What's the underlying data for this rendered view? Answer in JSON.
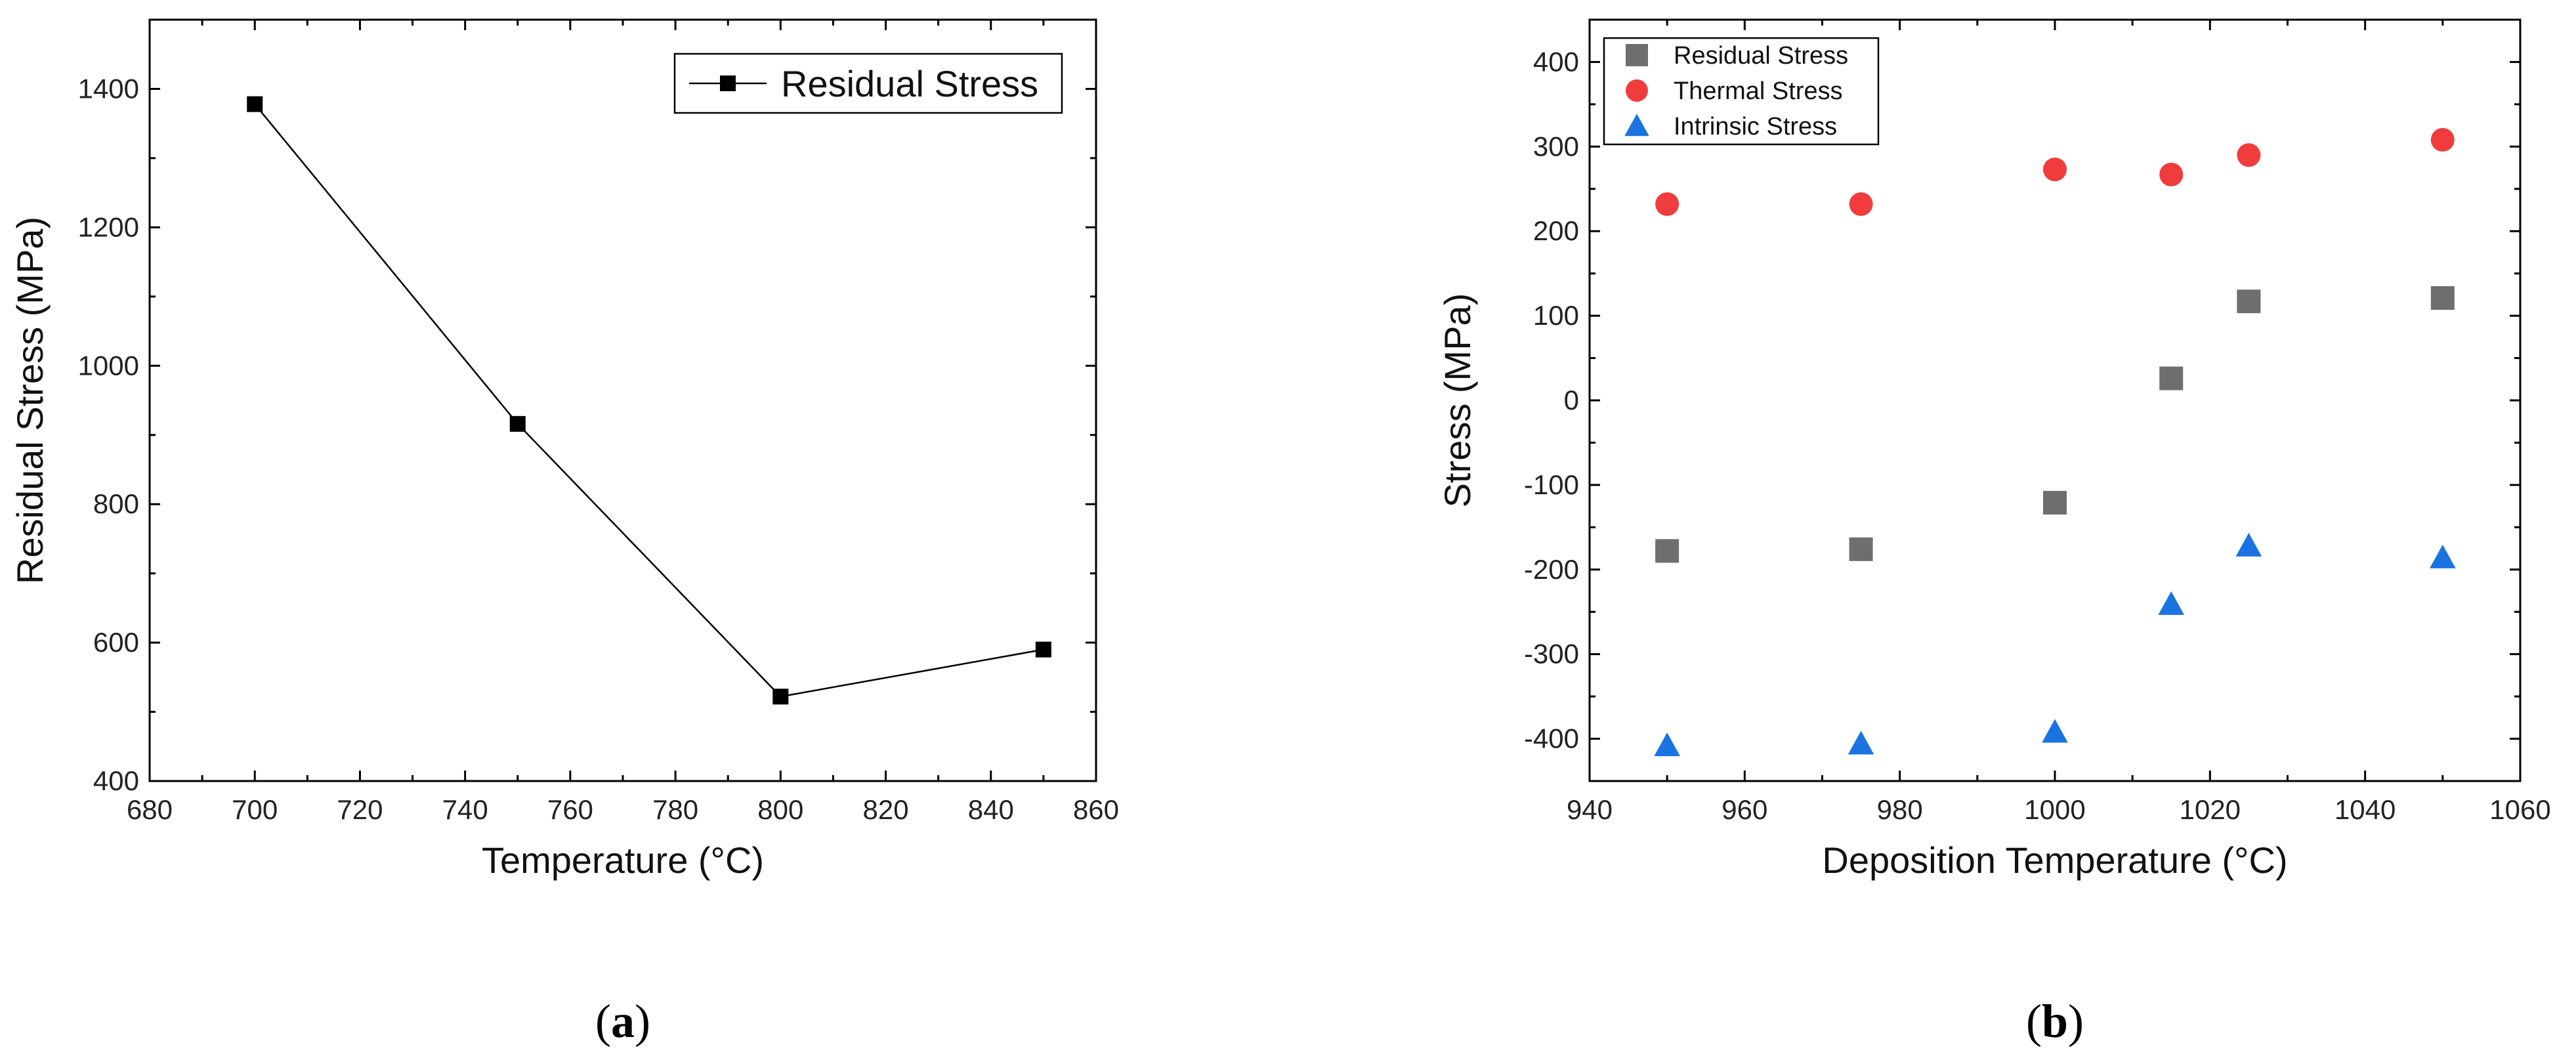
{
  "chart_data": [
    {
      "type": "line",
      "panel_label": "(a)",
      "panel_label_parts": {
        "open": "(",
        "letter": "a",
        "close": ")"
      },
      "title": "",
      "xlabel": "Temperature (°C)",
      "ylabel": "Residual Stress (MPa)",
      "xlim": [
        680,
        860
      ],
      "ylim": [
        400,
        1500
      ],
      "xticks": [
        680,
        700,
        720,
        740,
        760,
        780,
        800,
        820,
        840,
        860
      ],
      "yticks": [
        400,
        600,
        800,
        1000,
        1200,
        1400
      ],
      "legend_position": "top-right",
      "series": [
        {
          "name": "Residual Stress",
          "color": "#000000",
          "marker": "square",
          "x": [
            700,
            750,
            800,
            850
          ],
          "values": [
            1378,
            916,
            522,
            590
          ]
        }
      ]
    },
    {
      "type": "scatter",
      "panel_label": "(b)",
      "panel_label_parts": {
        "open": "(",
        "letter": "b",
        "close": ")"
      },
      "title": "",
      "xlabel": "Deposition Temperature (°C)",
      "ylabel": "Stress (MPa)",
      "xlim": [
        940,
        1060
      ],
      "ylim": [
        -450,
        450
      ],
      "xticks": [
        940,
        960,
        980,
        1000,
        1020,
        1040,
        1060
      ],
      "yticks": [
        -400,
        -300,
        -200,
        -100,
        0,
        100,
        200,
        300,
        400
      ],
      "legend_position": "top-left",
      "series": [
        {
          "name": "Residual Stress",
          "color": "#6e6e6e",
          "marker": "square",
          "x": [
            950,
            975,
            1000,
            1015,
            1025,
            1050
          ],
          "values": [
            -178,
            -176,
            -121,
            26,
            117,
            121
          ]
        },
        {
          "name": "Thermal Stress",
          "color": "#f03c3c",
          "marker": "circle",
          "x": [
            950,
            975,
            1000,
            1015,
            1025,
            1050
          ],
          "values": [
            232,
            232,
            273,
            267,
            290,
            308
          ]
        },
        {
          "name": "Intrinsic Stress",
          "color": "#1a73e0",
          "marker": "triangle",
          "x": [
            950,
            975,
            1000,
            1015,
            1025,
            1050
          ],
          "values": [
            -408,
            -406,
            -392,
            -241,
            -172,
            -186
          ]
        }
      ]
    }
  ]
}
